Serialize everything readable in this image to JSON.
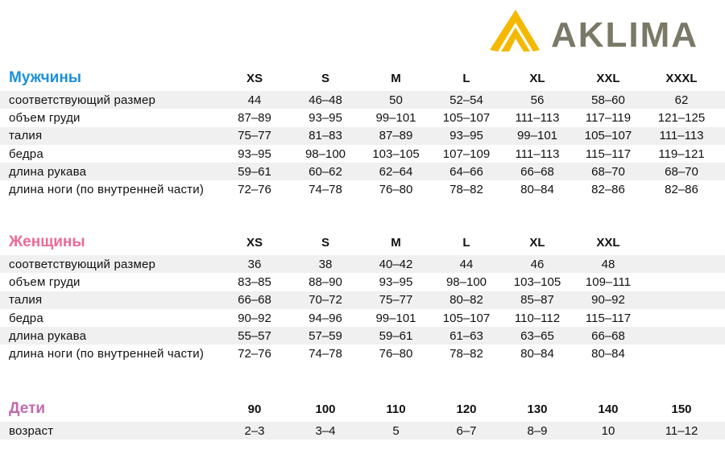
{
  "brand": {
    "name": "AKLIMA",
    "text_color": "#7a7866",
    "mark_color": "#f5b800"
  },
  "men": {
    "title": "Мужчины",
    "color": "#1b90dc",
    "sizes": [
      "XS",
      "S",
      "M",
      "L",
      "XL",
      "XXL",
      "XXXL"
    ],
    "rows": [
      {
        "label": "соответствующий размер",
        "values": [
          "44",
          "46–48",
          "50",
          "52–54",
          "56",
          "58–60",
          "62"
        ]
      },
      {
        "label": "объем груди",
        "values": [
          "87–89",
          "93–95",
          "99–101",
          "105–107",
          "111–113",
          "117–119",
          "121–125"
        ]
      },
      {
        "label": "талия",
        "values": [
          "75–77",
          "81–83",
          "87–89",
          "93–95",
          "99–101",
          "105–107",
          "111–113"
        ]
      },
      {
        "label": "бедра",
        "values": [
          "93–95",
          "98–100",
          "103–105",
          "107–109",
          "111–113",
          "115–117",
          "119–121"
        ]
      },
      {
        "label": "длина рукава",
        "values": [
          "59–61",
          "60–62",
          "62–64",
          "64–66",
          "66–68",
          "68–70",
          "68–70"
        ]
      },
      {
        "label": "длина ноги (по внутренней части)",
        "values": [
          "72–76",
          "74–78",
          "76–80",
          "78–82",
          "80–84",
          "82–86",
          "82–86"
        ]
      }
    ]
  },
  "women": {
    "title": "Женщины",
    "color": "#ec6a95",
    "sizes": [
      "XS",
      "S",
      "M",
      "L",
      "XL",
      "XXL"
    ],
    "rows": [
      {
        "label": "соответствующий размер",
        "values": [
          "36",
          "38",
          "40–42",
          "44",
          "46",
          "48"
        ]
      },
      {
        "label": "объем груди",
        "values": [
          "83–85",
          "88–90",
          "93–95",
          "98–100",
          "103–105",
          "109–111"
        ]
      },
      {
        "label": "талия",
        "values": [
          "66–68",
          "70–72",
          "75–77",
          "80–82",
          "85–87",
          "90–92"
        ]
      },
      {
        "label": "бедра",
        "values": [
          "90–92",
          "94–96",
          "99–101",
          "105–107",
          "110–112",
          "115–117"
        ]
      },
      {
        "label": "длина рукава",
        "values": [
          "55–57",
          "57–59",
          "59–61",
          "61–63",
          "63–65",
          "66–68"
        ]
      },
      {
        "label": "длина ноги (по внутренней части)",
        "values": [
          "72–76",
          "74–78",
          "76–80",
          "78–82",
          "80–84",
          "80–84"
        ]
      }
    ]
  },
  "kids": {
    "title": "Дети",
    "color": "#c06aaf",
    "sizes": [
      "90",
      "100",
      "110",
      "120",
      "130",
      "140",
      "150"
    ],
    "rows": [
      {
        "label": "возраст",
        "values": [
          "2–3",
          "3–4",
          "5",
          "6–7",
          "8–9",
          "10",
          "11–12"
        ]
      }
    ]
  }
}
